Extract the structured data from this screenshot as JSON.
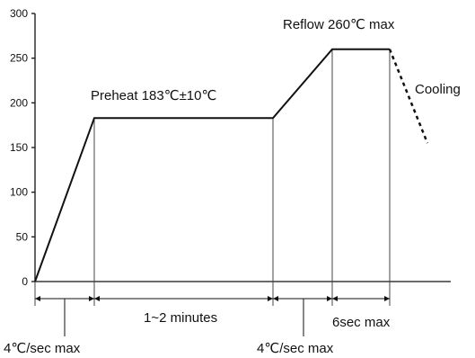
{
  "chart_data": {
    "type": "line",
    "title": "",
    "xlabel": "",
    "ylabel": "",
    "ylim": [
      0,
      300
    ],
    "yticks": [
      0,
      50,
      100,
      150,
      200,
      250,
      300
    ],
    "series": [
      {
        "x": [
          0,
          1,
          4,
          5,
          6
        ],
        "y": [
          0,
          183,
          183,
          260,
          260
        ]
      }
    ],
    "cooling_segment": {
      "x": [
        6,
        6.65
      ],
      "y": [
        260,
        155
      ]
    },
    "phase_boundaries": [
      0,
      1,
      4,
      5,
      6
    ],
    "annotations": {
      "preheat": "Preheat 183℃±10℃",
      "reflow": "Reflow 260℃ max",
      "cooling": "Cooling"
    },
    "intervals": {
      "ramp1": "4℃/sec max",
      "preheat": "1~2 minutes",
      "ramp2": "4℃/sec max",
      "reflow": "6sec max"
    }
  }
}
